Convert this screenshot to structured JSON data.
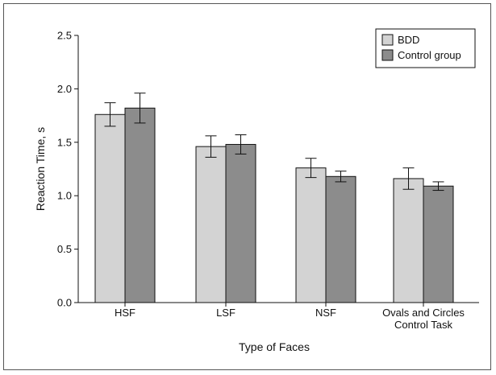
{
  "chart_data": {
    "type": "bar",
    "categories": [
      "HSF",
      "LSF",
      "NSF",
      "Ovals and Circles\nControl Task"
    ],
    "series": [
      {
        "name": "BDD",
        "values": [
          1.76,
          1.46,
          1.26,
          1.16
        ],
        "error": [
          0.11,
          0.1,
          0.09,
          0.1
        ],
        "color": "#d3d3d3"
      },
      {
        "name": "Control group",
        "values": [
          1.82,
          1.48,
          1.18,
          1.09
        ],
        "error": [
          0.14,
          0.09,
          0.05,
          0.04
        ],
        "color": "#8c8c8c"
      }
    ],
    "xlabel": "Type of Faces",
    "ylabel": "Reaction Time, s",
    "ylim": [
      0,
      2.5
    ],
    "yticks": [
      "0.0",
      "0.5",
      "1.0",
      "1.5",
      "2.0",
      "2.5"
    ],
    "grid": false,
    "legend_position": "top-right"
  }
}
